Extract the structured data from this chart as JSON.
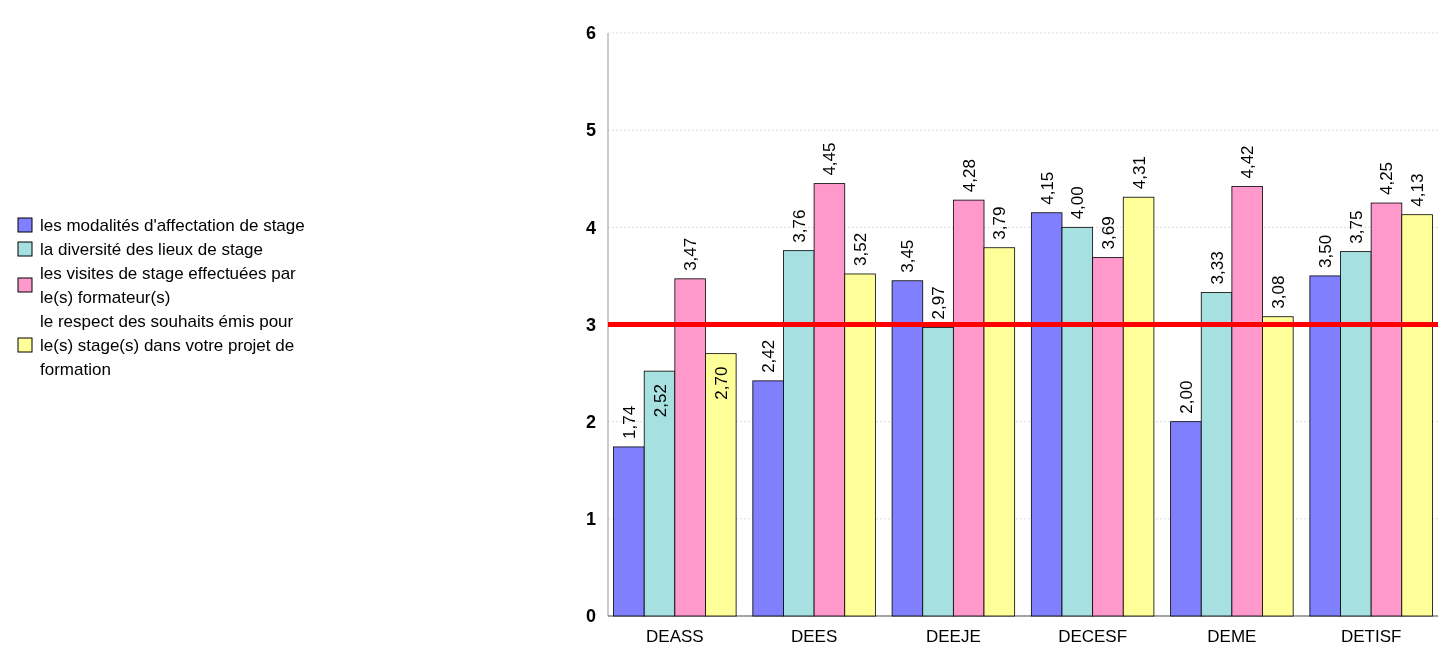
{
  "chart_data": {
    "type": "bar",
    "categories": [
      "DEASS",
      "DEES",
      "DEEJE",
      "DECESF",
      "DEME",
      "DETISF"
    ],
    "series": [
      {
        "name": "les modalités d'affectation de stage",
        "color": "#8080ff",
        "values": [
          1.74,
          2.42,
          3.45,
          4.15,
          2.0,
          3.5
        ],
        "value_labels": [
          "1,74",
          "2,42",
          "3,45",
          "4,15",
          "2,00",
          "3,50"
        ]
      },
      {
        "name": "la diversité des lieux de stage",
        "color": "#a6e0e0",
        "values": [
          2.52,
          3.76,
          2.97,
          4.0,
          3.33,
          3.75
        ],
        "value_labels": [
          "2,52",
          "3,76",
          "2,97",
          "4,00",
          "3,33",
          "3,75"
        ]
      },
      {
        "name": "les visites de stage effectuées par le(s) formateur(s)",
        "color": "#ff99cc",
        "values": [
          3.47,
          4.45,
          4.28,
          3.69,
          4.42,
          4.25
        ],
        "value_labels": [
          "3,47",
          "4,45",
          "4,28",
          "3,69",
          "4,42",
          "4,25"
        ]
      },
      {
        "name": "le respect des souhaits émis pour le(s) stage(s) dans votre projet de formation",
        "color": "#ffff99",
        "values": [
          2.7,
          3.52,
          3.79,
          4.31,
          3.08,
          4.13
        ],
        "value_labels": [
          "2,70",
          "3,52",
          "3,79",
          "4,31",
          "3,08",
          "4,13"
        ]
      }
    ],
    "ylim": [
      0,
      6
    ],
    "yticks": [
      0,
      1,
      2,
      3,
      4,
      5,
      6
    ],
    "grid": "y",
    "legend": "left",
    "ref_lines": [
      {
        "axis": "y",
        "value": 3,
        "color": "#ff0000"
      }
    ]
  }
}
